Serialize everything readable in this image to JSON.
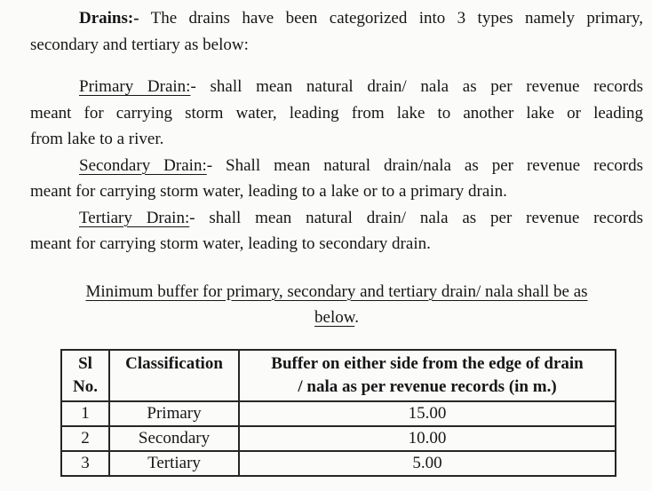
{
  "paragraphs": {
    "drains": {
      "lead": "Drains:-",
      "line1_rest": " The drains have been categorized into 3 types namely primary,",
      "line2": "secondary and tertiary as below:"
    },
    "primary": {
      "lead": "Primary Drain:",
      "line1_rest": "- shall mean natural drain/ nala as per revenue records",
      "line2": "meant for carrying storm water, leading from lake to another lake or leading",
      "line3": "from lake to a river."
    },
    "secondary": {
      "lead": "Secondary Drain:",
      "line1_rest": "- Shall mean natural drain/nala as per revenue records",
      "line2": "meant for carrying storm water, leading to a lake or to a primary drain."
    },
    "tertiary": {
      "lead": "Tertiary Drain:",
      "line1_rest": "- shall mean natural drain/ nala as per revenue records",
      "line2": "meant for carrying storm water, leading to secondary drain."
    }
  },
  "heading": {
    "line1": "Minimum buffer for primary, secondary and tertiary drain/ nala shall be as",
    "line2": "below",
    "line2_end": "."
  },
  "table": {
    "headers": {
      "sl_line1": "Sl",
      "sl_line2": "No.",
      "classification": "Classification",
      "buffer_line1": "Buffer on either side from the edge of drain",
      "buffer_line2": "/ nala as per revenue records (in m.)"
    },
    "rows": [
      {
        "sl": "1",
        "classification": "Primary",
        "buffer": "15.00"
      },
      {
        "sl": "2",
        "classification": "Secondary",
        "buffer": "10.00"
      },
      {
        "sl": "3",
        "classification": "Tertiary",
        "buffer": "5.00"
      }
    ]
  }
}
